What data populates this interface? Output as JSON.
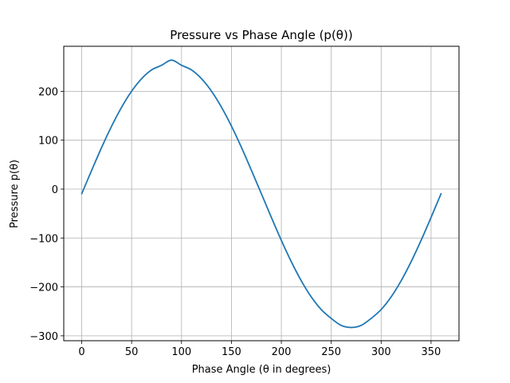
{
  "chart_data": {
    "type": "line",
    "title": "Pressure vs Phase Angle (p(θ))",
    "xlabel": "Phase Angle (θ in degrees)",
    "ylabel": "Pressure p(θ)",
    "xlim": [
      -18,
      378
    ],
    "ylim": [
      -310,
      292
    ],
    "xticks": [
      0,
      50,
      100,
      150,
      200,
      250,
      300,
      350
    ],
    "yticks": [
      -300,
      -200,
      -100,
      0,
      100,
      200
    ],
    "x": [
      0,
      10,
      20,
      30,
      40,
      50,
      60,
      70,
      80,
      90,
      100,
      110,
      120,
      130,
      140,
      150,
      160,
      170,
      180,
      190,
      200,
      210,
      220,
      230,
      240,
      250,
      260,
      270,
      280,
      290,
      300,
      310,
      320,
      330,
      340,
      350,
      360
    ],
    "series": [
      {
        "values": [
          -9.5,
          38.5,
          85.4,
          128.9,
          167.5,
          200.2,
          225.8,
          243.7,
          253.1,
          263.8,
          253.1,
          243.7,
          225.8,
          200.2,
          167.5,
          128.9,
          85.4,
          38.5,
          -9.5,
          -57.9,
          -104.9,
          -148.6,
          -187.6,
          -220.5,
          -246.3,
          -264.4,
          -278.7,
          -283.0,
          -278.7,
          -264.4,
          -246.3,
          -220.5,
          -187.6,
          -148.6,
          -104.9,
          -57.9,
          -9.5
        ],
        "color": "#1f77b4"
      }
    ],
    "grid": true,
    "legend": "none"
  }
}
